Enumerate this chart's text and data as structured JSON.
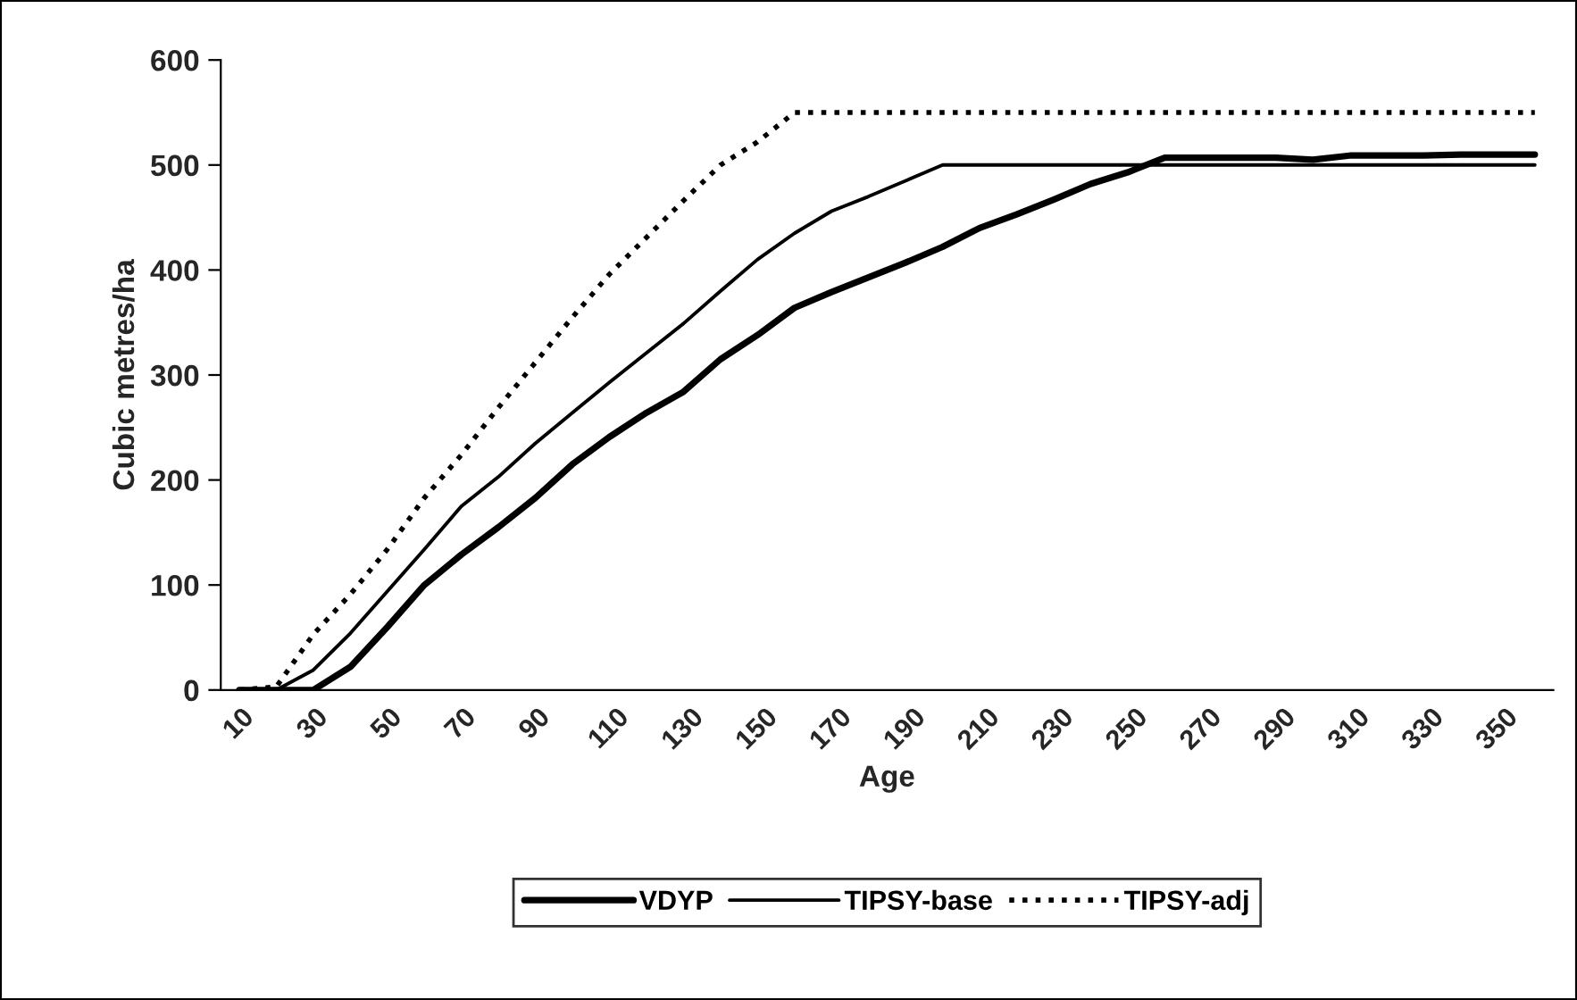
{
  "chart_data": {
    "type": "line",
    "xlabel": "Age",
    "ylabel": "Cubic metres/ha",
    "categories": [
      "10",
      null,
      "30",
      null,
      "50",
      null,
      "70",
      null,
      "90",
      null,
      "110",
      null,
      "130",
      null,
      "150",
      null,
      "170",
      null,
      "190",
      null,
      "210",
      null,
      "230",
      null,
      "250",
      null,
      "270",
      null,
      "290",
      null,
      "310",
      null,
      "330",
      null,
      "350",
      null
    ],
    "series": [
      {
        "name": "VDYP",
        "color": "#000000",
        "line_style": "solid",
        "values": [
          0,
          0,
          0,
          22,
          60,
          100,
          129,
          155,
          183,
          215,
          241,
          264,
          284,
          315,
          338,
          364,
          379,
          393,
          407,
          422,
          440,
          453,
          467,
          482,
          493,
          507,
          507,
          507,
          507,
          505,
          509,
          509,
          509,
          510,
          510,
          510
        ]
      },
      {
        "name": "TIPSY-base",
        "color": "#000000",
        "line_style": "solid",
        "values": [
          0,
          0,
          19,
          54,
          94,
          134,
          175,
          203,
          235,
          264,
          293,
          321,
          349,
          380,
          410,
          435,
          456,
          470,
          485,
          500,
          500,
          500,
          500,
          500,
          500,
          500,
          500,
          500,
          500,
          500,
          500,
          500,
          500,
          500,
          500,
          500
        ]
      },
      {
        "name": "TIPSY-adj",
        "color": "#000000",
        "line_style": "dotted",
        "values": [
          0,
          3,
          53,
          91,
          134,
          183,
          224,
          269,
          312,
          355,
          396,
          431,
          466,
          500,
          522,
          550,
          550,
          550,
          550,
          550,
          550,
          550,
          550,
          550,
          550,
          550,
          550,
          550,
          550,
          550,
          550,
          550,
          550,
          550,
          550,
          550
        ]
      }
    ],
    "ylim": [
      0,
      600
    ],
    "yticks": [
      0,
      100,
      200,
      300,
      400,
      500,
      600
    ],
    "grid": false,
    "legend": "bottom",
    "marker": "none"
  }
}
